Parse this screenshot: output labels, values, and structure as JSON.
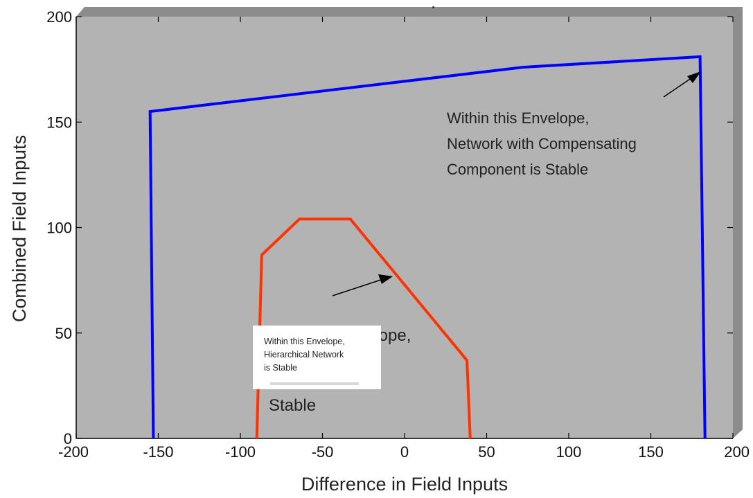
{
  "chart_data": {
    "type": "line",
    "xlabel": "Difference in Field Inputs",
    "ylabel": "Combined Field Inputs",
    "xlim": [
      -200,
      200
    ],
    "ylim": [
      0,
      200
    ],
    "xticks": [
      -200,
      -150,
      -100,
      -50,
      0,
      50,
      100,
      150,
      200
    ],
    "yticks": [
      0,
      50,
      100,
      150,
      200
    ],
    "grid": false,
    "background": "#b3b3b3",
    "series": [
      {
        "color": "#0000ff",
        "x": [
          -153,
          -155,
          72,
          180,
          183
        ],
        "y": [
          0,
          155,
          176,
          181,
          0
        ]
      },
      {
        "color": "#ff3300",
        "x": [
          -90,
          -87,
          -64,
          -33,
          38,
          40
        ],
        "y": [
          0,
          87,
          104,
          104,
          37,
          0
        ]
      }
    ],
    "annotations": [
      {
        "lines": [
          "Within this Envelope,",
          "Network with Compensating",
          "Component is Stable"
        ]
      },
      {
        "lines": [
          "Within this Envelope,",
          "Hierarchical Network",
          "is Stable"
        ]
      },
      {
        "lines": [
          "velope,",
          "Stable"
        ]
      }
    ],
    "extra_marks": [
      "."
    ]
  }
}
